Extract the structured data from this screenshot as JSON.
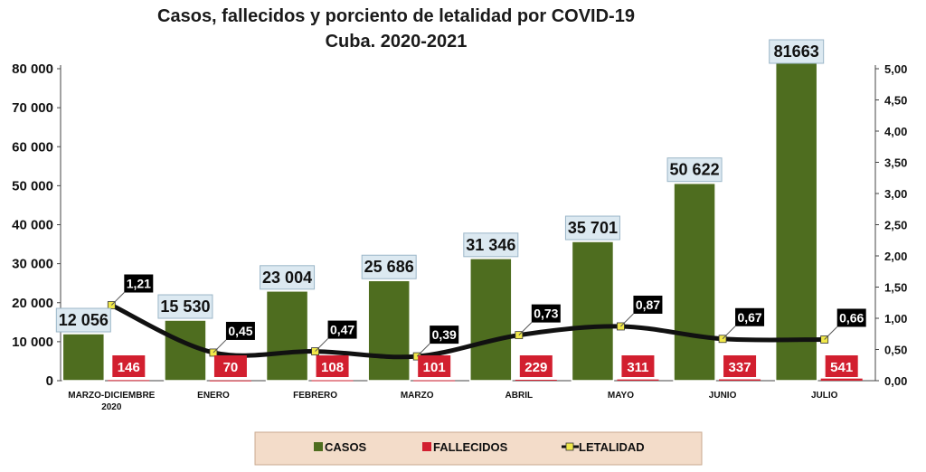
{
  "title": {
    "line1": "Casos, fallecidos y porciento de letalidad por COVID-19",
    "line2": "Cuba. 2020-2021"
  },
  "colors": {
    "casos": "#4e6d1f",
    "fallecidos": "#d21f2f",
    "letalidad_line": "#111111",
    "letalidad_marker": "#f1e84a",
    "case_label_bg": "#dce9f1",
    "legend_bg": "#f3dcc9"
  },
  "chart_data": {
    "type": "bar",
    "title": "Casos, fallecidos y porciento de letalidad por COVID-19 Cuba. 2020-2021",
    "categories": [
      [
        "MARZO-DICIEMBRE",
        "2020"
      ],
      [
        "ENERO"
      ],
      [
        "FEBRERO"
      ],
      [
        "MARZO"
      ],
      [
        "ABRIL"
      ],
      [
        "MAYO"
      ],
      [
        "JUNIO"
      ],
      [
        "JULIO"
      ]
    ],
    "series": [
      {
        "name": "CASOS",
        "type": "bar",
        "axis": "left",
        "values": [
          12056,
          15530,
          23004,
          25686,
          31346,
          35701,
          50622,
          81663
        ],
        "labels": [
          "12 056",
          "15 530",
          "23 004",
          "25 686",
          "31 346",
          "35 701",
          "50 622",
          "81663"
        ]
      },
      {
        "name": "FALLECIDOS",
        "type": "bar",
        "axis": "left",
        "values": [
          146,
          70,
          108,
          101,
          229,
          311,
          337,
          541
        ],
        "labels": [
          "146",
          "70",
          "108",
          "101",
          "229",
          "311",
          "337",
          "541"
        ]
      },
      {
        "name": "LETALIDAD",
        "type": "line",
        "axis": "right",
        "values": [
          1.21,
          0.45,
          0.47,
          0.39,
          0.73,
          0.87,
          0.67,
          0.66
        ],
        "labels": [
          "1,21",
          "0,45",
          "0,47",
          "0,39",
          "0,73",
          "0,87",
          "0,67",
          "0,66"
        ]
      }
    ],
    "y_left": {
      "min": 0,
      "max": 80000,
      "ticks": [
        "0",
        "10 000",
        "20 000",
        "30 000",
        "40 000",
        "50 000",
        "60 000",
        "70 000",
        "80 000"
      ]
    },
    "y_right": {
      "min": 0,
      "max": 5,
      "ticks": [
        "0,00",
        "0,50",
        "1,00",
        "1,50",
        "2,00",
        "2,50",
        "3,00",
        "3,50",
        "4,00",
        "4,50",
        "5,00"
      ]
    },
    "grid": false,
    "legend_position": "bottom"
  },
  "legend": {
    "items": [
      {
        "label": "CASOS",
        "kind": "bar",
        "color": "#4e6d1f"
      },
      {
        "label": "FALLECIDOS",
        "kind": "bar",
        "color": "#d21f2f"
      },
      {
        "label": "LETALIDAD",
        "kind": "line",
        "color": "#111111"
      }
    ]
  }
}
